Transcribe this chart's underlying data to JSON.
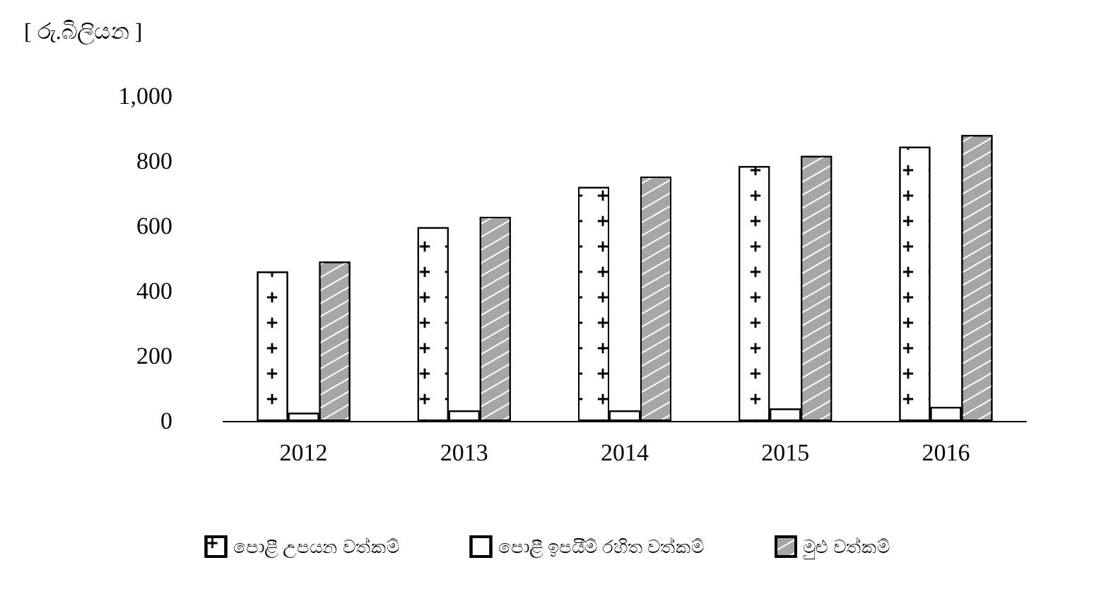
{
  "chart_data": {
    "type": "bar",
    "ylabel": "[ රු.බිලියන ]",
    "categories": [
      "2012",
      "2013",
      "2014",
      "2015",
      "2016"
    ],
    "series": [
      {
        "name": "පොළී උපයන වත්කම්",
        "color": "#ffffff",
        "values": [
          460,
          596,
          720,
          784,
          844
        ]
      },
      {
        "name": "පොළී ඉපයීම් රහිත වත්කම්",
        "color": "#ffffff",
        "values": [
          25,
          32,
          32,
          38,
          43
        ]
      },
      {
        "name": "මුළු වත්කම්",
        "color": "#a6a6a6",
        "values": [
          490,
          628,
          752,
          816,
          880
        ]
      }
    ],
    "ylim": [
      0,
      1000
    ],
    "yticks": [
      0,
      200,
      400,
      600,
      800,
      {
        "value": 1000,
        "label": "1,000"
      }
    ],
    "grid": false,
    "legend": "bottom"
  }
}
